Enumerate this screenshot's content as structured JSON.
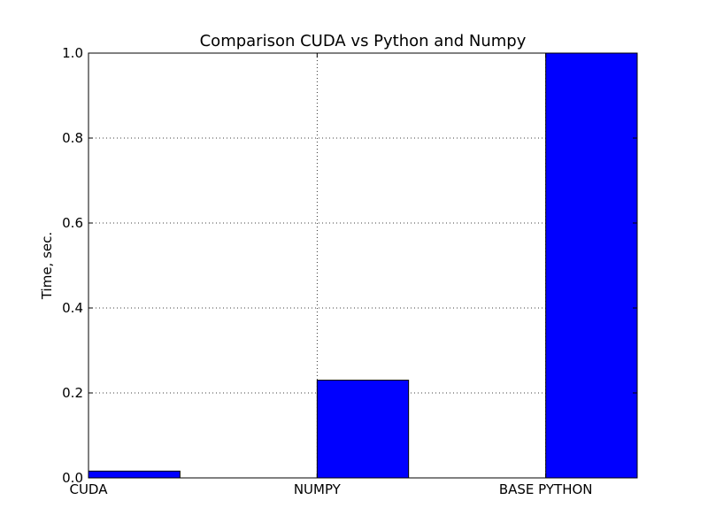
{
  "chart_data": {
    "type": "bar",
    "title": "Comparison CUDA vs Python and Numpy",
    "xlabel": "",
    "ylabel": "Time, sec.",
    "categories": [
      "CUDA",
      "NUMPY",
      "BASE PYTHON"
    ],
    "values": [
      0.016,
      0.23,
      1.0
    ],
    "ylim": [
      0,
      1.0
    ],
    "yticks": [
      "0.0",
      "0.2",
      "0.4",
      "0.6",
      "0.8",
      "1.0"
    ],
    "bar_color": "#0000ff",
    "grid": true,
    "grid_style": "dotted",
    "legend": "none"
  }
}
